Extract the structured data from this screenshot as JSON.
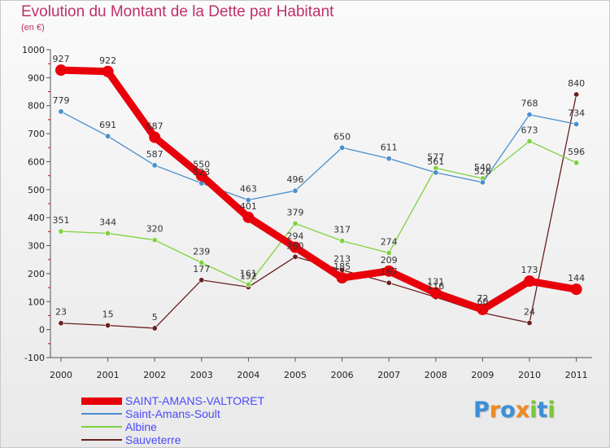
{
  "chart_data": {
    "type": "line",
    "title": "Evolution du Montant de la Dette par Habitant",
    "subtitle": "(en €)",
    "categories": [
      "2000",
      "2001",
      "2002",
      "2003",
      "2004",
      "2005",
      "2006",
      "2007",
      "2008",
      "2009",
      "2010",
      "2011"
    ],
    "yticks": [
      "-100",
      "0",
      "100",
      "200",
      "300",
      "400",
      "500",
      "600",
      "700",
      "800",
      "900",
      "1000"
    ],
    "ylim": [
      -100,
      1000
    ],
    "grid": false,
    "legend_position": "bottom-left",
    "series": [
      {
        "name": "SAINT-AMANS-VALTORET",
        "color": "#e8000a",
        "values": [
          927,
          922,
          687,
          550,
          401,
          294,
          185,
          209,
          131,
          72,
          173,
          144
        ],
        "labels": [
          "927",
          "922",
          "687",
          "550",
          "401",
          "294",
          "185",
          "209",
          "131",
          "72",
          "173",
          "144"
        ]
      },
      {
        "name": "Saint-Amans-Soult",
        "color": "#4a8fcc",
        "values": [
          779,
          691,
          587,
          523,
          463,
          496,
          650,
          611,
          561,
          526,
          768,
          734
        ],
        "labels": [
          "779",
          "691",
          "587",
          "523",
          "463",
          "496",
          "650",
          "611",
          "561",
          "526",
          "768",
          "734"
        ]
      },
      {
        "name": "Albine",
        "color": "#7ed23e",
        "values": [
          351,
          344,
          320,
          239,
          161,
          379,
          317,
          274,
          577,
          540,
          673,
          596
        ],
        "labels": [
          "351",
          "344",
          "320",
          "239",
          "161",
          "379",
          "317",
          "274",
          "577",
          "540",
          "673",
          "596"
        ]
      },
      {
        "name": "Sauveterre",
        "color": "#6b1f1f",
        "values": [
          23,
          15,
          5,
          177,
          152,
          260,
          213,
          167,
          116,
          60,
          24,
          840
        ],
        "labels": [
          "23",
          "15",
          "5",
          "177",
          "152",
          "260",
          "213",
          "167",
          "116",
          "60",
          "24",
          "840"
        ]
      }
    ]
  },
  "logo": {
    "letters": [
      "P",
      "r",
      "o",
      "x",
      "i",
      "t",
      "i"
    ],
    "colors": [
      "#3a8fd8",
      "#f08a1c",
      "#3a8fd8",
      "#f08a1c",
      "#7bc63a",
      "#3a8fd8",
      "#7bc63a"
    ]
  }
}
